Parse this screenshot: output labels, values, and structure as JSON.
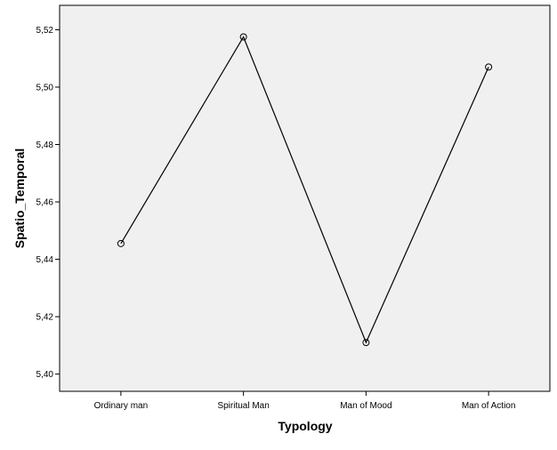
{
  "chart_data": {
    "type": "line",
    "title": "",
    "xlabel": "Typology",
    "ylabel": "Spatio_Temporal",
    "categories": [
      "Ordinary man",
      "Spiritual Man",
      "Man of Mood",
      "Man of Action"
    ],
    "series": [
      {
        "values": [
          5.4455,
          5.5175,
          5.411,
          5.507
        ]
      }
    ],
    "ylim": [
      5.394,
      5.5285
    ],
    "yticks": [
      5.4,
      5.42,
      5.44,
      5.46,
      5.48,
      5.5,
      5.52
    ],
    "ytick_labels": [
      "5,40",
      "5,42",
      "5,44",
      "5,46",
      "5,48",
      "5,50",
      "5,52"
    ],
    "grid": false,
    "markers": "open-circle",
    "colors": {
      "plot_background": "#f0f0f0",
      "line": "#000000",
      "frame": "#000000"
    }
  }
}
